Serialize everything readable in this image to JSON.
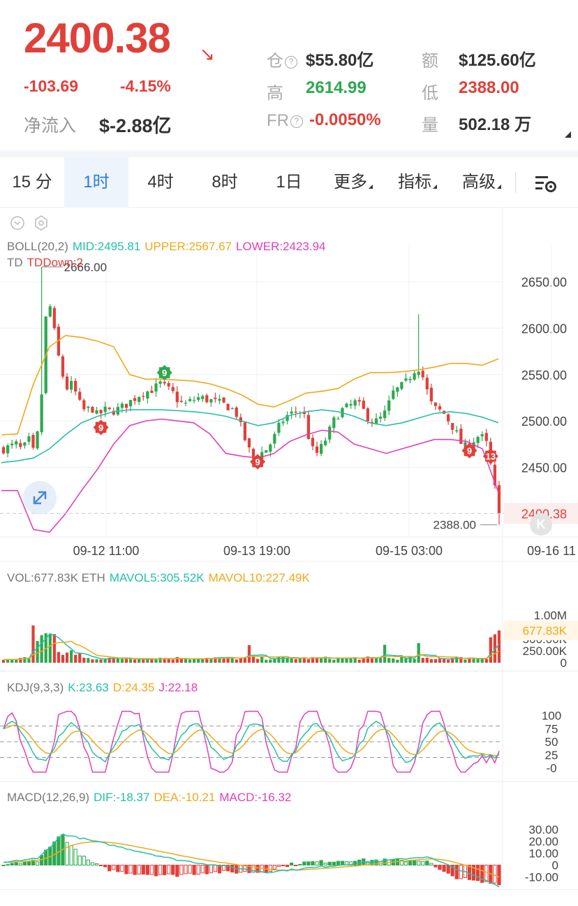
{
  "header": {
    "price": "2400.38",
    "change_abs": "-103.69",
    "change_pct": "-4.15%",
    "net_inflow_label": "净流入",
    "net_inflow_value": "$-2.88亿",
    "stats": {
      "oi_label": "仓",
      "oi_value": "$55.80亿",
      "turnover_label": "额",
      "turnover_value": "$125.60亿",
      "high_label": "高",
      "high_value": "2614.99",
      "low_label": "低",
      "low_value": "2388.00",
      "fr_label": "FR",
      "fr_value": "-0.0050%",
      "vol_label": "量",
      "vol_value": "502.18 万"
    }
  },
  "tabs": [
    {
      "label": "15 分",
      "active": false
    },
    {
      "label": "1时",
      "active": true
    },
    {
      "label": "4时",
      "active": false
    },
    {
      "label": "8时",
      "active": false
    },
    {
      "label": "1日",
      "active": false
    },
    {
      "label": "更多",
      "active": false
    },
    {
      "label": "指标",
      "active": false
    },
    {
      "label": "高级",
      "active": false
    }
  ],
  "colors": {
    "up": "#2fa84f",
    "down": "#e0403a",
    "mid": "#26bfa6",
    "upper": "#f0a81a",
    "lower": "#e040b8",
    "active_tab": "#2d7be0"
  },
  "main_legend": {
    "boll": "BOLL(20,2)",
    "mid": "MID:2495.81",
    "upper": "UPPER:2567.67",
    "lower": "LOWER:2423.94",
    "td": "TD",
    "td_down": "TDDown:2",
    "max_label": "2666.00",
    "min_label": "2388.00",
    "current_label": "2400.38"
  },
  "vol_legend": {
    "vol": "VOL:677.83K ETH",
    "mavol5": "MAVOL5:305.52K",
    "mavol10": "MAVOL10:227.49K",
    "current_label": "677.83K"
  },
  "kdj_legend": {
    "title": "KDJ(9,3,3)",
    "k": "K:23.63",
    "d": "D:24.35",
    "j": "J:22.18"
  },
  "macd_legend": {
    "title": "MACD(12,26,9)",
    "dif": "DIF:-18.37",
    "dea": "DEA:-10.21",
    "macd": "MACD:-16.32"
  },
  "chart_data": {
    "type": "candlestick",
    "main": {
      "yaxis_ticks": [
        "2650.00",
        "2600.00",
        "2550.00",
        "2500.00",
        "2450.00"
      ],
      "ylim": [
        2375,
        2690
      ],
      "xaxis_ticks": [
        "09-12 11:00",
        "09-13 19:00",
        "09-15 03:00",
        "09-16 11"
      ],
      "close_path": [
        2470,
        2472,
        2475,
        2468,
        2480,
        2462,
        2520,
        2640,
        2600,
        2560,
        2535,
        2540,
        2520,
        2510,
        2515,
        2505,
        2512,
        2510,
        2512,
        2515,
        2520,
        2525,
        2530,
        2532,
        2535,
        2540,
        2535,
        2530,
        2520,
        2518,
        2522,
        2525,
        2524,
        2522,
        2520,
        2518,
        2515,
        2510,
        2490,
        2470,
        2460,
        2465,
        2470,
        2480,
        2495,
        2505,
        2508,
        2512,
        2505,
        2470,
        2465,
        2475,
        2490,
        2505,
        2512,
        2515,
        2520,
        2515,
        2505,
        2498,
        2502,
        2510,
        2530,
        2535,
        2540,
        2550,
        2560,
        2545,
        2520,
        2512,
        2510,
        2500,
        2490,
        2475,
        2470,
        2480,
        2485,
        2475,
        2440,
        2400.38
      ],
      "bollinger": {
        "mid": [
          2455,
          2457,
          2460,
          2470,
          2485,
          2498,
          2505,
          2510,
          2512,
          2512,
          2512,
          2511,
          2510,
          2508,
          2505,
          2500,
          2495,
          2498,
          2506,
          2510,
          2512,
          2510,
          2505,
          2498,
          2495,
          2498,
          2503,
          2508,
          2510,
          2508,
          2504,
          2498
        ],
        "upper": [
          2485,
          2486,
          2540,
          2580,
          2592,
          2590,
          2586,
          2580,
          2550,
          2545,
          2545,
          2544,
          2543,
          2540,
          2535,
          2528,
          2518,
          2515,
          2522,
          2530,
          2532,
          2535,
          2545,
          2552,
          2552,
          2553,
          2555,
          2558,
          2562,
          2562,
          2560,
          2567
        ],
        "lower": [
          2425,
          2425,
          2383,
          2380,
          2400,
          2425,
          2448,
          2475,
          2495,
          2500,
          2502,
          2500,
          2498,
          2486,
          2465,
          2462,
          2460,
          2465,
          2478,
          2485,
          2490,
          2488,
          2475,
          2470,
          2465,
          2470,
          2475,
          2480,
          2480,
          2478,
          2470,
          2423
        ]
      },
      "td_markers": [
        {
          "label": "9",
          "type": "sell"
        },
        {
          "label": "9",
          "type": "buy"
        },
        {
          "label": "9",
          "type": "buy"
        },
        {
          "label": "9",
          "type": "buy"
        },
        {
          "label": "13",
          "type": "buy"
        }
      ]
    },
    "volume": {
      "yaxis_ticks": [
        "1.00M",
        "500.00K",
        "250.00K",
        "0"
      ],
      "ylim": [
        0,
        1100000
      ]
    },
    "kdj": {
      "yaxis_ticks": [
        "100",
        "75",
        "50",
        "25",
        "-0"
      ],
      "ylim": [
        -10,
        110
      ]
    },
    "macd": {
      "yaxis_ticks": [
        "30.00",
        "20.00",
        "10.00",
        "0",
        "-10.00"
      ],
      "ylim": [
        -15,
        35
      ]
    }
  }
}
